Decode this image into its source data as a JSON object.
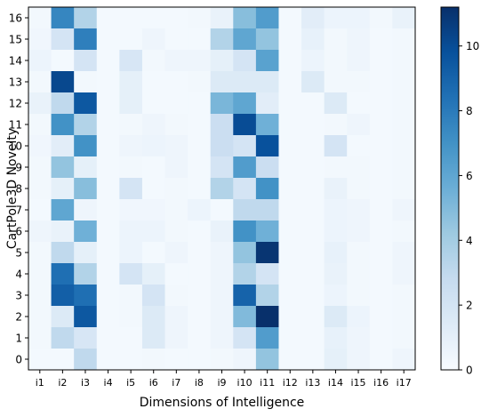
{
  "chart_data": {
    "type": "heatmap",
    "xlabel": "Dimensions of Intelligence",
    "ylabel": "CartPole3D Novelty",
    "x_categories": [
      "i1",
      "i2",
      "i3",
      "i4",
      "i5",
      "i6",
      "i7",
      "i8",
      "i9",
      "i10",
      "i11",
      "i12",
      "i13",
      "i14",
      "i15",
      "i16",
      "i17"
    ],
    "y_categories": [
      "16",
      "15",
      "14",
      "13",
      "12",
      "11",
      "10",
      "9",
      "8",
      "7",
      "6",
      "5",
      "4",
      "3",
      "2",
      "1",
      "0"
    ],
    "values": [
      [
        0.3,
        7.5,
        3.5,
        0.2,
        0.2,
        0.2,
        0.2,
        0.3,
        0.8,
        4.8,
        6.5,
        0.2,
        1.2,
        0.6,
        0.6,
        0.3,
        0.8
      ],
      [
        0.4,
        2.0,
        7.8,
        0.2,
        0.2,
        0.5,
        0.2,
        0.2,
        3.5,
        6.0,
        4.5,
        0.2,
        0.9,
        0.3,
        0.5,
        0.2,
        0.3
      ],
      [
        0.6,
        0.2,
        2.0,
        0.2,
        1.8,
        0.3,
        0.5,
        0.5,
        1.0,
        2.0,
        6.2,
        0.2,
        0.6,
        0.3,
        0.5,
        0.2,
        0.3
      ],
      [
        0.3,
        10.2,
        0.3,
        0.2,
        1.0,
        0.2,
        0.2,
        0.3,
        1.5,
        1.5,
        1.5,
        0.2,
        1.5,
        0.3,
        0.3,
        0.2,
        0.3
      ],
      [
        0.8,
        3.0,
        9.5,
        0.2,
        1.0,
        0.2,
        0.2,
        0.2,
        5.2,
        6.0,
        1.2,
        0.2,
        0.2,
        1.5,
        0.2,
        0.2,
        0.3
      ],
      [
        0.3,
        7.0,
        3.5,
        0.2,
        0.3,
        0.5,
        0.3,
        0.2,
        2.5,
        10.0,
        5.5,
        0.2,
        0.2,
        0.3,
        0.5,
        0.2,
        0.3
      ],
      [
        0.4,
        1.2,
        7.0,
        0.2,
        0.5,
        0.6,
        0.5,
        0.2,
        2.5,
        2.0,
        9.8,
        0.2,
        0.2,
        2.0,
        0.2,
        0.2,
        0.3
      ],
      [
        0.3,
        4.5,
        1.0,
        0.2,
        0.3,
        0.2,
        0.5,
        0.2,
        2.0,
        6.5,
        2.5,
        0.2,
        0.2,
        0.3,
        0.3,
        0.2,
        0.3
      ],
      [
        0.3,
        1.0,
        4.8,
        0.2,
        2.0,
        0.2,
        0.3,
        0.2,
        3.5,
        2.0,
        7.0,
        0.2,
        0.2,
        0.8,
        0.3,
        0.2,
        0.3
      ],
      [
        0.2,
        6.0,
        0.5,
        0.2,
        0.4,
        0.4,
        0.3,
        0.6,
        0.2,
        3.0,
        3.0,
        0.2,
        0.2,
        0.6,
        0.5,
        0.2,
        0.5
      ],
      [
        0.5,
        0.8,
        5.5,
        0.2,
        0.6,
        0.6,
        0.3,
        0.2,
        0.8,
        7.0,
        5.5,
        0.2,
        0.2,
        0.6,
        0.5,
        0.2,
        0.3
      ],
      [
        0.3,
        3.0,
        1.0,
        0.2,
        0.6,
        0.2,
        0.5,
        0.2,
        0.5,
        4.5,
        11.0,
        0.2,
        0.2,
        0.9,
        0.3,
        0.2,
        0.5
      ],
      [
        0.3,
        8.5,
        3.5,
        0.2,
        2.0,
        1.0,
        0.2,
        0.2,
        0.5,
        3.5,
        2.0,
        0.2,
        0.2,
        0.8,
        0.3,
        0.2,
        0.5
      ],
      [
        0.3,
        9.2,
        8.5,
        0.2,
        0.3,
        2.0,
        0.3,
        0.2,
        0.5,
        9.0,
        3.5,
        0.2,
        0.2,
        0.6,
        0.3,
        0.2,
        0.3
      ],
      [
        0.3,
        1.5,
        9.5,
        0.2,
        0.3,
        1.5,
        0.5,
        0.2,
        0.5,
        5.0,
        11.2,
        0.2,
        0.2,
        1.5,
        0.6,
        0.2,
        0.3
      ],
      [
        0.3,
        3.0,
        1.8,
        0.2,
        0.2,
        1.5,
        0.5,
        0.2,
        0.5,
        2.0,
        6.5,
        0.2,
        0.2,
        0.9,
        0.5,
        0.2,
        0.3
      ],
      [
        0.2,
        0.2,
        3.0,
        0.2,
        0.2,
        0.3,
        0.2,
        0.2,
        0.3,
        0.5,
        4.5,
        0.2,
        0.2,
        1.0,
        0.5,
        0.2,
        0.5
      ]
    ],
    "colorbar": {
      "min": 0,
      "max": 11.2,
      "ticks": [
        0,
        2,
        4,
        6,
        8,
        10
      ],
      "colormap": "Blues"
    }
  }
}
